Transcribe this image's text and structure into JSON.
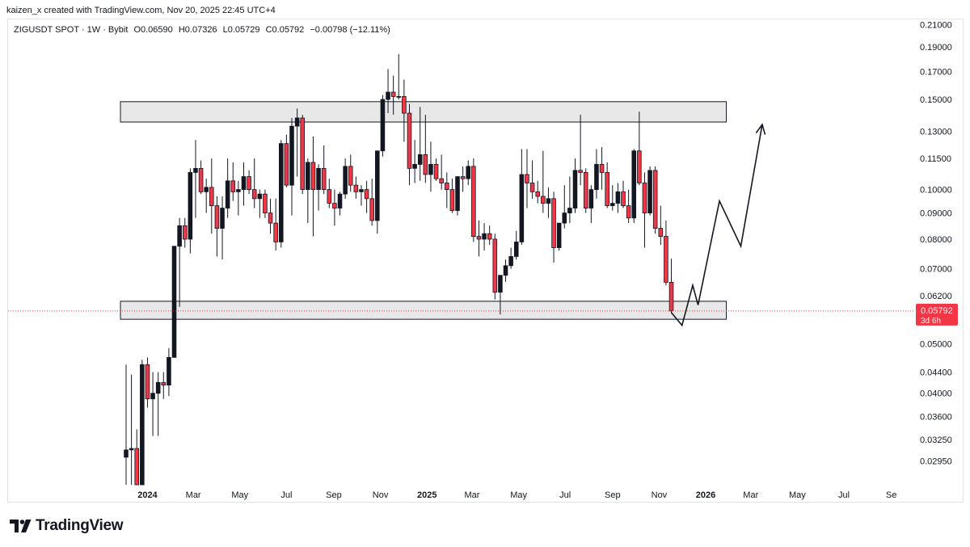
{
  "header": {
    "attribution": "kaizen_x created with TradingView.com, Nov 20, 2025 22:45 UTC+4"
  },
  "legend": {
    "symbol": "ZIGUSDT SPOT · 1W · Bybit",
    "open": "O0.06590",
    "high": "H0.07326",
    "low": "L0.05729",
    "close": "C0.05792",
    "change": "−0.00798 (−12.11%)"
  },
  "price_label": {
    "value": "0.05792",
    "countdown": "3d 6h",
    "color": "#f23645"
  },
  "footer": {
    "brand": "TradingView"
  },
  "colors": {
    "up": "#131722",
    "down": "#f23645",
    "zone_fill": "#e8e8e8",
    "zone_border": "#131722"
  },
  "chart_data": {
    "type": "candlestick",
    "y_scale": "log",
    "y_ticks": [
      0.21,
      0.19,
      0.17,
      0.15,
      0.13,
      0.115,
      0.1,
      0.09,
      0.08,
      0.07,
      0.062,
      0.05,
      0.044,
      0.04,
      0.036,
      0.0325,
      0.0295
    ],
    "y_tick_labels": [
      "0.21000",
      "0.19000",
      "0.17000",
      "0.15000",
      "0.13000",
      "0.11500",
      "0.10000",
      "0.09000",
      "0.08000",
      "0.07000",
      "0.06200",
      "0.05000",
      "0.04400",
      "0.04000",
      "0.03600",
      "0.03250",
      "0.02950"
    ],
    "ylim": [
      0.0265,
      0.215
    ],
    "x_axis": {
      "start_date": "2023-12-04",
      "end_date": "2026-09-30",
      "ticks": [
        {
          "date": "2024-01-01",
          "label": "2024",
          "bold": true
        },
        {
          "date": "2024-03-01",
          "label": "Mar",
          "bold": false
        },
        {
          "date": "2024-05-01",
          "label": "May",
          "bold": false
        },
        {
          "date": "2024-07-01",
          "label": "Jul",
          "bold": false
        },
        {
          "date": "2024-09-01",
          "label": "Sep",
          "bold": false
        },
        {
          "date": "2024-11-01",
          "label": "Nov",
          "bold": false
        },
        {
          "date": "2025-01-01",
          "label": "2025",
          "bold": true
        },
        {
          "date": "2025-03-01",
          "label": "Mar",
          "bold": false
        },
        {
          "date": "2025-05-01",
          "label": "May",
          "bold": false
        },
        {
          "date": "2025-07-01",
          "label": "Jul",
          "bold": false
        },
        {
          "date": "2025-09-01",
          "label": "Sep",
          "bold": false
        },
        {
          "date": "2025-11-01",
          "label": "Nov",
          "bold": false
        },
        {
          "date": "2026-01-01",
          "label": "2026",
          "bold": true
        },
        {
          "date": "2026-03-01",
          "label": "Mar",
          "bold": false
        },
        {
          "date": "2026-05-01",
          "label": "May",
          "bold": false
        },
        {
          "date": "2026-07-01",
          "label": "Jul",
          "bold": false
        },
        {
          "date": "2026-09-01",
          "label": "Se",
          "bold": false
        }
      ]
    },
    "candles": [
      {
        "t": "2023-12-04",
        "o": 0.03,
        "h": 0.0455,
        "l": 0.0265,
        "c": 0.031
      },
      {
        "t": "2023-12-11",
        "o": 0.031,
        "h": 0.0435,
        "l": 0.0265,
        "c": 0.0312
      },
      {
        "t": "2023-12-18",
        "o": 0.0312,
        "h": 0.034,
        "l": 0.0265,
        "c": 0.0265
      },
      {
        "t": "2023-12-25",
        "o": 0.0265,
        "h": 0.0465,
        "l": 0.0265,
        "c": 0.0455
      },
      {
        "t": "2024-01-01",
        "o": 0.0455,
        "h": 0.047,
        "l": 0.0375,
        "c": 0.039
      },
      {
        "t": "2024-01-08",
        "o": 0.039,
        "h": 0.044,
        "l": 0.033,
        "c": 0.04
      },
      {
        "t": "2024-01-15",
        "o": 0.04,
        "h": 0.044,
        "l": 0.033,
        "c": 0.042
      },
      {
        "t": "2024-01-22",
        "o": 0.042,
        "h": 0.044,
        "l": 0.039,
        "c": 0.0415
      },
      {
        "t": "2024-01-29",
        "o": 0.0415,
        "h": 0.049,
        "l": 0.0395,
        "c": 0.047
      },
      {
        "t": "2024-02-05",
        "o": 0.047,
        "h": 0.0775,
        "l": 0.047,
        "c": 0.0775
      },
      {
        "t": "2024-02-12",
        "o": 0.0775,
        "h": 0.088,
        "l": 0.059,
        "c": 0.085
      },
      {
        "t": "2024-02-19",
        "o": 0.085,
        "h": 0.088,
        "l": 0.077,
        "c": 0.08
      },
      {
        "t": "2024-02-26",
        "o": 0.08,
        "h": 0.11,
        "l": 0.075,
        "c": 0.108
      },
      {
        "t": "2024-03-04",
        "o": 0.108,
        "h": 0.125,
        "l": 0.088,
        "c": 0.11
      },
      {
        "t": "2024-03-11",
        "o": 0.11,
        "h": 0.114,
        "l": 0.098,
        "c": 0.099
      },
      {
        "t": "2024-03-18",
        "o": 0.099,
        "h": 0.105,
        "l": 0.09,
        "c": 0.101
      },
      {
        "t": "2024-03-25",
        "o": 0.101,
        "h": 0.115,
        "l": 0.082,
        "c": 0.093
      },
      {
        "t": "2024-04-01",
        "o": 0.093,
        "h": 0.097,
        "l": 0.074,
        "c": 0.084
      },
      {
        "t": "2024-04-08",
        "o": 0.084,
        "h": 0.097,
        "l": 0.073,
        "c": 0.092
      },
      {
        "t": "2024-04-15",
        "o": 0.092,
        "h": 0.115,
        "l": 0.088,
        "c": 0.104
      },
      {
        "t": "2024-04-22",
        "o": 0.104,
        "h": 0.113,
        "l": 0.095,
        "c": 0.099
      },
      {
        "t": "2024-04-29",
        "o": 0.099,
        "h": 0.104,
        "l": 0.089,
        "c": 0.1
      },
      {
        "t": "2024-05-06",
        "o": 0.1,
        "h": 0.113,
        "l": 0.093,
        "c": 0.106
      },
      {
        "t": "2024-05-13",
        "o": 0.106,
        "h": 0.109,
        "l": 0.098,
        "c": 0.1
      },
      {
        "t": "2024-05-20",
        "o": 0.1,
        "h": 0.115,
        "l": 0.092,
        "c": 0.096
      },
      {
        "t": "2024-05-27",
        "o": 0.096,
        "h": 0.1,
        "l": 0.088,
        "c": 0.098
      },
      {
        "t": "2024-06-03",
        "o": 0.098,
        "h": 0.1,
        "l": 0.088,
        "c": 0.09
      },
      {
        "t": "2024-06-10",
        "o": 0.09,
        "h": 0.096,
        "l": 0.082,
        "c": 0.086
      },
      {
        "t": "2024-06-17",
        "o": 0.086,
        "h": 0.096,
        "l": 0.076,
        "c": 0.079
      },
      {
        "t": "2024-06-24",
        "o": 0.079,
        "h": 0.125,
        "l": 0.077,
        "c": 0.123
      },
      {
        "t": "2024-07-01",
        "o": 0.123,
        "h": 0.128,
        "l": 0.101,
        "c": 0.102
      },
      {
        "t": "2024-07-08",
        "o": 0.102,
        "h": 0.138,
        "l": 0.089,
        "c": 0.133
      },
      {
        "t": "2024-07-15",
        "o": 0.133,
        "h": 0.144,
        "l": 0.106,
        "c": 0.138
      },
      {
        "t": "2024-07-22",
        "o": 0.138,
        "h": 0.14,
        "l": 0.098,
        "c": 0.1
      },
      {
        "t": "2024-07-29",
        "o": 0.1,
        "h": 0.115,
        "l": 0.086,
        "c": 0.113
      },
      {
        "t": "2024-08-05",
        "o": 0.113,
        "h": 0.127,
        "l": 0.081,
        "c": 0.1
      },
      {
        "t": "2024-08-12",
        "o": 0.1,
        "h": 0.112,
        "l": 0.091,
        "c": 0.11
      },
      {
        "t": "2024-08-19",
        "o": 0.11,
        "h": 0.122,
        "l": 0.098,
        "c": 0.1
      },
      {
        "t": "2024-08-26",
        "o": 0.1,
        "h": 0.105,
        "l": 0.092,
        "c": 0.094
      },
      {
        "t": "2024-09-02",
        "o": 0.094,
        "h": 0.1,
        "l": 0.085,
        "c": 0.092
      },
      {
        "t": "2024-09-09",
        "o": 0.092,
        "h": 0.099,
        "l": 0.089,
        "c": 0.098
      },
      {
        "t": "2024-09-16",
        "o": 0.098,
        "h": 0.115,
        "l": 0.096,
        "c": 0.111
      },
      {
        "t": "2024-09-23",
        "o": 0.111,
        "h": 0.117,
        "l": 0.099,
        "c": 0.102
      },
      {
        "t": "2024-09-30",
        "o": 0.102,
        "h": 0.106,
        "l": 0.096,
        "c": 0.099
      },
      {
        "t": "2024-10-07",
        "o": 0.099,
        "h": 0.102,
        "l": 0.093,
        "c": 0.1
      },
      {
        "t": "2024-10-14",
        "o": 0.1,
        "h": 0.104,
        "l": 0.09,
        "c": 0.096
      },
      {
        "t": "2024-10-21",
        "o": 0.096,
        "h": 0.105,
        "l": 0.085,
        "c": 0.087
      },
      {
        "t": "2024-10-28",
        "o": 0.087,
        "h": 0.119,
        "l": 0.082,
        "c": 0.119
      },
      {
        "t": "2024-11-04",
        "o": 0.119,
        "h": 0.153,
        "l": 0.116,
        "c": 0.15
      },
      {
        "t": "2024-11-11",
        "o": 0.15,
        "h": 0.172,
        "l": 0.141,
        "c": 0.155
      },
      {
        "t": "2024-11-18",
        "o": 0.155,
        "h": 0.167,
        "l": 0.14,
        "c": 0.152
      },
      {
        "t": "2024-11-25",
        "o": 0.152,
        "h": 0.184,
        "l": 0.15,
        "c": 0.152
      },
      {
        "t": "2024-12-02",
        "o": 0.152,
        "h": 0.164,
        "l": 0.124,
        "c": 0.141
      },
      {
        "t": "2024-12-09",
        "o": 0.141,
        "h": 0.147,
        "l": 0.102,
        "c": 0.11
      },
      {
        "t": "2024-12-16",
        "o": 0.11,
        "h": 0.125,
        "l": 0.103,
        "c": 0.112
      },
      {
        "t": "2024-12-23",
        "o": 0.112,
        "h": 0.145,
        "l": 0.104,
        "c": 0.117
      },
      {
        "t": "2024-12-30",
        "o": 0.117,
        "h": 0.14,
        "l": 0.103,
        "c": 0.107
      },
      {
        "t": "2025-01-06",
        "o": 0.107,
        "h": 0.124,
        "l": 0.099,
        "c": 0.112
      },
      {
        "t": "2025-01-13",
        "o": 0.112,
        "h": 0.115,
        "l": 0.104,
        "c": 0.105
      },
      {
        "t": "2025-01-20",
        "o": 0.105,
        "h": 0.117,
        "l": 0.1,
        "c": 0.103
      },
      {
        "t": "2025-01-27",
        "o": 0.103,
        "h": 0.108,
        "l": 0.092,
        "c": 0.1
      },
      {
        "t": "2025-02-03",
        "o": 0.1,
        "h": 0.105,
        "l": 0.09,
        "c": 0.091
      },
      {
        "t": "2025-02-10",
        "o": 0.091,
        "h": 0.106,
        "l": 0.089,
        "c": 0.106
      },
      {
        "t": "2025-02-17",
        "o": 0.106,
        "h": 0.111,
        "l": 0.099,
        "c": 0.105
      },
      {
        "t": "2025-02-24",
        "o": 0.105,
        "h": 0.114,
        "l": 0.102,
        "c": 0.111
      },
      {
        "t": "2025-03-03",
        "o": 0.111,
        "h": 0.115,
        "l": 0.079,
        "c": 0.081
      },
      {
        "t": "2025-03-10",
        "o": 0.081,
        "h": 0.087,
        "l": 0.074,
        "c": 0.08
      },
      {
        "t": "2025-03-17",
        "o": 0.08,
        "h": 0.086,
        "l": 0.076,
        "c": 0.082
      },
      {
        "t": "2025-03-24",
        "o": 0.082,
        "h": 0.085,
        "l": 0.078,
        "c": 0.08
      },
      {
        "t": "2025-03-31",
        "o": 0.08,
        "h": 0.082,
        "l": 0.061,
        "c": 0.063
      },
      {
        "t": "2025-04-07",
        "o": 0.063,
        "h": 0.068,
        "l": 0.057,
        "c": 0.068
      },
      {
        "t": "2025-04-14",
        "o": 0.068,
        "h": 0.073,
        "l": 0.066,
        "c": 0.071
      },
      {
        "t": "2025-04-21",
        "o": 0.071,
        "h": 0.077,
        "l": 0.07,
        "c": 0.074
      },
      {
        "t": "2025-04-28",
        "o": 0.074,
        "h": 0.083,
        "l": 0.073,
        "c": 0.079
      },
      {
        "t": "2025-05-05",
        "o": 0.079,
        "h": 0.12,
        "l": 0.078,
        "c": 0.107
      },
      {
        "t": "2025-05-12",
        "o": 0.107,
        "h": 0.12,
        "l": 0.092,
        "c": 0.103
      },
      {
        "t": "2025-05-19",
        "o": 0.103,
        "h": 0.114,
        "l": 0.096,
        "c": 0.099
      },
      {
        "t": "2025-05-26",
        "o": 0.099,
        "h": 0.104,
        "l": 0.094,
        "c": 0.097
      },
      {
        "t": "2025-06-02",
        "o": 0.097,
        "h": 0.119,
        "l": 0.09,
        "c": 0.094
      },
      {
        "t": "2025-06-09",
        "o": 0.094,
        "h": 0.101,
        "l": 0.088,
        "c": 0.096
      },
      {
        "t": "2025-06-16",
        "o": 0.096,
        "h": 0.099,
        "l": 0.072,
        "c": 0.077
      },
      {
        "t": "2025-06-23",
        "o": 0.077,
        "h": 0.086,
        "l": 0.076,
        "c": 0.086
      },
      {
        "t": "2025-06-30",
        "o": 0.086,
        "h": 0.102,
        "l": 0.084,
        "c": 0.09
      },
      {
        "t": "2025-07-07",
        "o": 0.09,
        "h": 0.106,
        "l": 0.086,
        "c": 0.092
      },
      {
        "t": "2025-07-14",
        "o": 0.092,
        "h": 0.115,
        "l": 0.09,
        "c": 0.109
      },
      {
        "t": "2025-07-21",
        "o": 0.109,
        "h": 0.14,
        "l": 0.102,
        "c": 0.108
      },
      {
        "t": "2025-07-28",
        "o": 0.108,
        "h": 0.11,
        "l": 0.09,
        "c": 0.092
      },
      {
        "t": "2025-08-04",
        "o": 0.092,
        "h": 0.102,
        "l": 0.086,
        "c": 0.1
      },
      {
        "t": "2025-08-11",
        "o": 0.1,
        "h": 0.12,
        "l": 0.096,
        "c": 0.112
      },
      {
        "t": "2025-08-18",
        "o": 0.112,
        "h": 0.121,
        "l": 0.1,
        "c": 0.108
      },
      {
        "t": "2025-08-25",
        "o": 0.108,
        "h": 0.113,
        "l": 0.092,
        "c": 0.093
      },
      {
        "t": "2025-09-01",
        "o": 0.093,
        "h": 0.102,
        "l": 0.091,
        "c": 0.094
      },
      {
        "t": "2025-09-08",
        "o": 0.094,
        "h": 0.103,
        "l": 0.09,
        "c": 0.099
      },
      {
        "t": "2025-09-15",
        "o": 0.099,
        "h": 0.104,
        "l": 0.092,
        "c": 0.093
      },
      {
        "t": "2025-09-22",
        "o": 0.093,
        "h": 0.1,
        "l": 0.086,
        "c": 0.088
      },
      {
        "t": "2025-09-29",
        "o": 0.088,
        "h": 0.12,
        "l": 0.086,
        "c": 0.119
      },
      {
        "t": "2025-10-06",
        "o": 0.119,
        "h": 0.142,
        "l": 0.102,
        "c": 0.103
      },
      {
        "t": "2025-10-13",
        "o": 0.103,
        "h": 0.108,
        "l": 0.077,
        "c": 0.09
      },
      {
        "t": "2025-10-20",
        "o": 0.09,
        "h": 0.111,
        "l": 0.089,
        "c": 0.109
      },
      {
        "t": "2025-10-27",
        "o": 0.109,
        "h": 0.111,
        "l": 0.082,
        "c": 0.084
      },
      {
        "t": "2025-11-03",
        "o": 0.084,
        "h": 0.093,
        "l": 0.078,
        "c": 0.081
      },
      {
        "t": "2025-11-10",
        "o": 0.081,
        "h": 0.087,
        "l": 0.065,
        "c": 0.0659
      },
      {
        "t": "2025-11-17",
        "o": 0.0659,
        "h": 0.07326,
        "l": 0.05729,
        "c": 0.05792
      }
    ],
    "zones": [
      {
        "name": "resistance-zone",
        "from": "2023-12-01",
        "to": "2026-01-28",
        "low": 0.1355,
        "high": 0.1485
      },
      {
        "name": "support-zone",
        "from": "2023-12-01",
        "to": "2026-01-28",
        "low": 0.0558,
        "high": 0.0605
      }
    ],
    "projection": [
      {
        "t": "2025-11-17",
        "p": 0.0575
      },
      {
        "t": "2025-12-01",
        "p": 0.0543
      },
      {
        "t": "2025-12-15",
        "p": 0.065
      },
      {
        "t": "2025-12-22",
        "p": 0.0595
      },
      {
        "t": "2026-01-19",
        "p": 0.095
      },
      {
        "t": "2026-02-16",
        "p": 0.0775
      },
      {
        "t": "2026-03-16",
        "p": 0.134
      }
    ],
    "arrowhead": true,
    "current_price": 0.05792
  }
}
